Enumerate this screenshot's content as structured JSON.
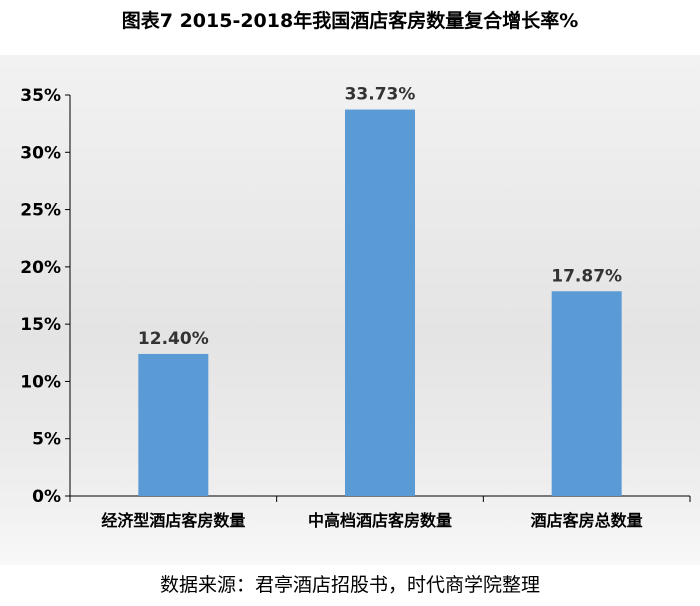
{
  "title": "图表7   2015-2018年我国酒店客房数量复合增长率%",
  "source": "数据来源：君亭酒店招股书，时代商学院整理",
  "colors": {
    "bar": "#5b9bd5",
    "axis": "#000000"
  },
  "chart_data": {
    "type": "bar",
    "title": "图表7   2015-2018年我国酒店客房数量复合增长率%",
    "xlabel": "",
    "ylabel": "",
    "categories": [
      "经济型酒店客房数量",
      "中高档酒店客房数量",
      "酒店客房总数量"
    ],
    "values": [
      12.4,
      33.73,
      17.87
    ],
    "data_labels": [
      "12.40%",
      "33.73%",
      "17.87%"
    ],
    "ylim": [
      0,
      35
    ],
    "yticks": [
      "0%",
      "5%",
      "10%",
      "15%",
      "20%",
      "25%",
      "30%",
      "35%"
    ],
    "grid": false,
    "legend": "none"
  }
}
